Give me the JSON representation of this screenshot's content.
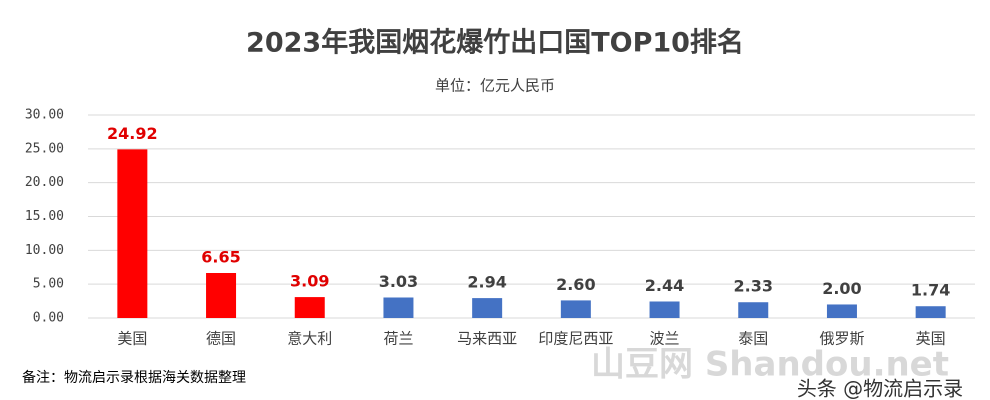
{
  "chart_data": {
    "type": "bar",
    "title": "2023年我国烟花爆竹出口国TOP10排名",
    "subtitle": "单位：亿元人民币",
    "categories": [
      "美国",
      "德国",
      "意大利",
      "荷兰",
      "马来西亚",
      "印度尼西亚",
      "波兰",
      "泰国",
      "俄罗斯",
      "英国"
    ],
    "values": [
      24.92,
      6.65,
      3.09,
      3.03,
      2.94,
      2.6,
      2.44,
      2.33,
      2.0,
      1.74
    ],
    "value_labels": [
      "24.92",
      "6.65",
      "3.09",
      "3.03",
      "2.94",
      "2.60",
      "2.44",
      "2.33",
      "2.00",
      "1.74"
    ],
    "colors": [
      "#ff0000",
      "#ff0000",
      "#ff0000",
      "#4472c4",
      "#4472c4",
      "#4472c4",
      "#4472c4",
      "#4472c4",
      "#4472c4",
      "#4472c4"
    ],
    "value_label_colors": [
      "#e00000",
      "#e00000",
      "#e00000",
      "#404040",
      "#404040",
      "#404040",
      "#404040",
      "#404040",
      "#404040",
      "#404040"
    ],
    "ylim": [
      0,
      30
    ],
    "yticks": [
      {
        "value": 0,
        "label": "0.00"
      },
      {
        "value": 5,
        "label": "5.00"
      },
      {
        "value": 10,
        "label": "10.00"
      },
      {
        "value": 15,
        "label": "15.00"
      },
      {
        "value": 20,
        "label": "20.00"
      },
      {
        "value": 25,
        "label": "25.00"
      },
      {
        "value": 30,
        "label": "30.00"
      }
    ],
    "grid": true,
    "note": "备注：物流启示录根据海关数据整理",
    "watermarks": [
      "山豆网 Shandou.net",
      "头条 @物流启示录"
    ]
  }
}
